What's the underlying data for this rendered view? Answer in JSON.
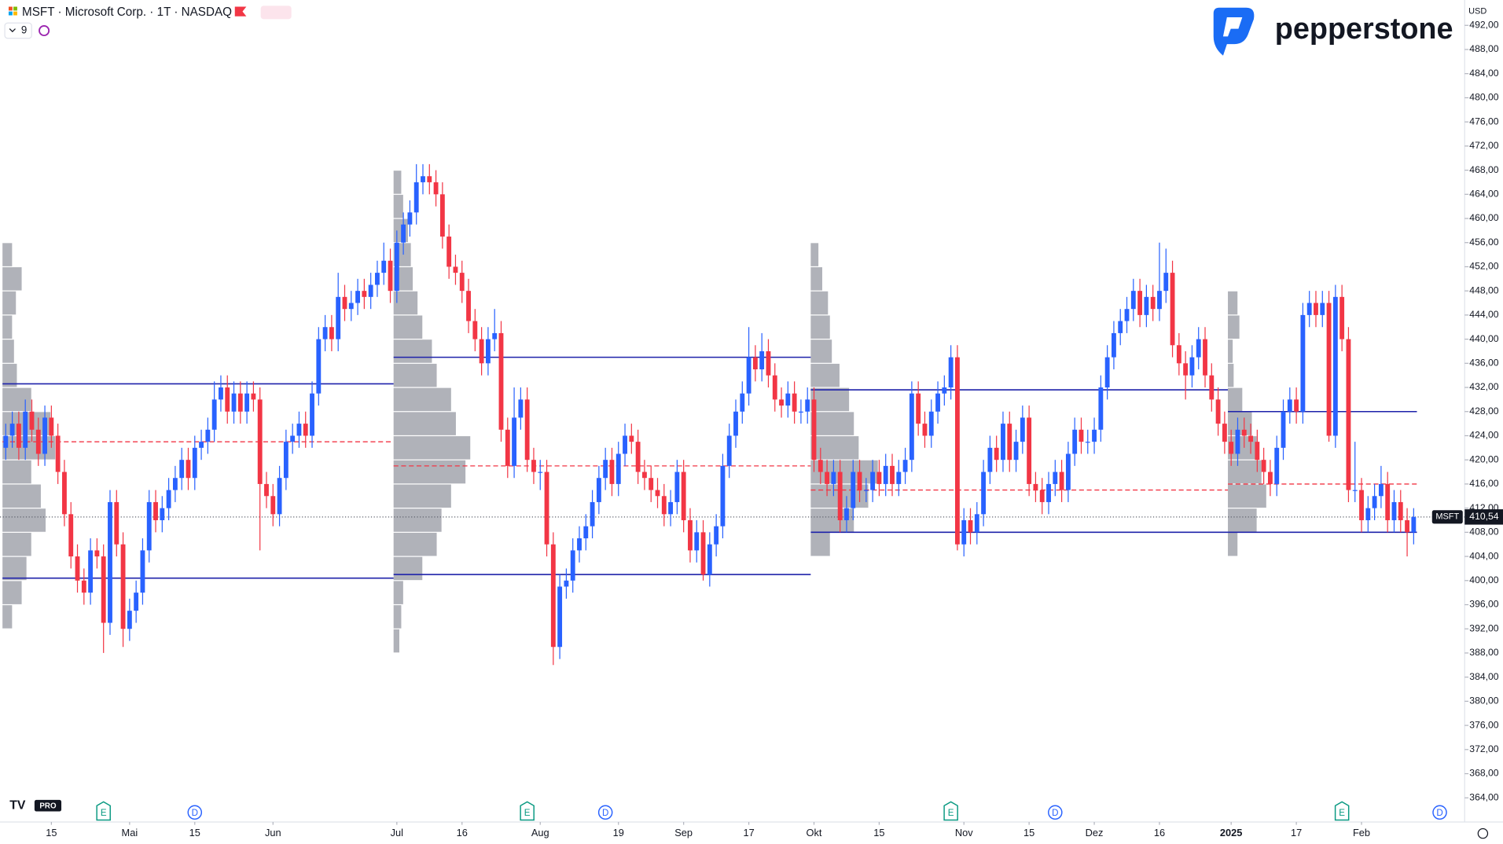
{
  "chart_data": {
    "type": "candlestick",
    "title": "MSFT · Microsoft Corp. · 1T · NASDAQ",
    "interval_badge": "9",
    "currency": "USD",
    "brand": "pepperstone",
    "tv_badge": "PRO",
    "symbol_tag": "MSFT",
    "last_price": {
      "value": 410.54,
      "label": "410,54"
    },
    "up_color": "#2962ff",
    "down_color": "#f23645",
    "ylim": [
      360,
      496.2
    ],
    "yticks": [
      {
        "value": 364,
        "label": "364,00"
      },
      {
        "value": 368,
        "label": "368,00"
      },
      {
        "value": 372,
        "label": "372,00"
      },
      {
        "value": 376,
        "label": "376,00"
      },
      {
        "value": 380,
        "label": "380,00"
      },
      {
        "value": 384,
        "label": "384,00"
      },
      {
        "value": 388,
        "label": "388,00"
      },
      {
        "value": 392,
        "label": "392,00"
      },
      {
        "value": 396,
        "label": "396,00"
      },
      {
        "value": 400,
        "label": "400,00"
      },
      {
        "value": 404,
        "label": "404,00"
      },
      {
        "value": 408,
        "label": "408,00"
      },
      {
        "value": 412,
        "label": "412,00"
      },
      {
        "value": 416,
        "label": "416,00"
      },
      {
        "value": 420,
        "label": "420,00"
      },
      {
        "value": 424,
        "label": "424,00"
      },
      {
        "value": 428,
        "label": "428,00"
      },
      {
        "value": 432,
        "label": "432,00"
      },
      {
        "value": 436,
        "label": "436,00"
      },
      {
        "value": 440,
        "label": "440,00"
      },
      {
        "value": 444,
        "label": "444,00"
      },
      {
        "value": 448,
        "label": "448,00"
      },
      {
        "value": 452,
        "label": "452,00"
      },
      {
        "value": 456,
        "label": "456,00"
      },
      {
        "value": 460,
        "label": "460,00"
      },
      {
        "value": 464,
        "label": "464,00"
      },
      {
        "value": 468,
        "label": "468,00"
      },
      {
        "value": 472,
        "label": "472,00"
      },
      {
        "value": 476,
        "label": "476,00"
      },
      {
        "value": 480,
        "label": "480,00"
      },
      {
        "value": 484,
        "label": "484,00"
      },
      {
        "value": 488,
        "label": "488,00"
      },
      {
        "value": 492,
        "label": "492,00"
      }
    ],
    "xticks": [
      {
        "value": 7,
        "label": "15"
      },
      {
        "value": 19,
        "label": "Mai"
      },
      {
        "value": 29,
        "label": "15"
      },
      {
        "value": 41,
        "label": "Jun"
      },
      {
        "value": 60,
        "label": "Jul"
      },
      {
        "value": 70,
        "label": "16"
      },
      {
        "value": 82,
        "label": "Aug"
      },
      {
        "value": 94,
        "label": "19"
      },
      {
        "value": 104,
        "label": "Sep"
      },
      {
        "value": 114,
        "label": "17"
      },
      {
        "value": 124,
        "label": "Okt"
      },
      {
        "value": 134,
        "label": "15"
      },
      {
        "value": 147,
        "label": "Nov"
      },
      {
        "value": 157,
        "label": "15"
      },
      {
        "value": 167,
        "label": "Dez"
      },
      {
        "value": 177,
        "label": "16"
      },
      {
        "value": 188,
        "label": "2025"
      },
      {
        "value": 198,
        "label": "17"
      },
      {
        "value": 208,
        "label": "Feb"
      }
    ],
    "open": [
      422,
      424,
      426,
      422,
      428,
      425,
      421,
      427,
      424,
      418,
      411,
      404,
      400,
      398,
      405,
      404,
      393,
      413,
      406,
      392,
      395,
      398,
      405,
      413,
      410,
      412,
      415,
      417,
      420,
      417,
      422,
      423,
      425,
      430,
      432,
      428,
      431,
      428,
      431,
      430,
      416,
      414,
      411,
      417,
      423,
      424,
      426,
      424,
      431,
      440,
      442,
      440,
      447,
      445,
      446,
      448,
      447,
      449,
      451,
      453,
      448,
      456,
      459,
      461,
      466,
      467,
      466,
      464,
      457,
      452,
      451,
      448,
      443,
      440,
      436,
      440,
      441,
      425,
      419,
      427,
      430,
      420,
      418,
      418,
      406,
      389,
      399,
      400,
      405,
      407,
      409,
      413,
      417,
      420,
      416,
      421,
      424,
      423,
      418,
      417,
      415,
      414,
      411,
      413,
      418,
      410,
      405,
      408,
      401,
      406,
      409,
      419,
      424,
      428,
      431,
      437,
      435,
      438,
      434,
      430,
      429,
      431,
      428,
      428,
      430,
      420,
      418,
      416,
      418,
      410,
      412,
      418,
      415,
      415,
      418,
      416,
      419,
      416,
      418,
      420,
      431,
      426,
      424,
      428,
      431,
      432,
      437,
      406,
      410,
      408,
      411,
      418,
      422,
      420,
      426,
      420,
      423,
      427,
      416,
      415,
      413,
      416,
      418,
      415,
      421,
      425,
      423,
      423,
      425,
      432,
      437,
      441,
      443,
      445,
      448,
      444,
      447,
      445,
      448,
      451,
      439,
      436,
      434,
      437,
      440,
      434,
      430,
      426,
      423,
      421,
      425,
      424,
      423,
      420,
      418,
      416,
      422,
      428,
      430,
      428,
      444,
      446,
      444,
      446,
      424,
      447,
      440,
      415,
      415,
      410,
      412,
      414,
      416,
      410,
      413,
      410,
      408
    ],
    "high": [
      426,
      428,
      428,
      430,
      430,
      427,
      429,
      429,
      426,
      420,
      413,
      406,
      402,
      407,
      407,
      406,
      415,
      415,
      408,
      397,
      400,
      407,
      415,
      415,
      414,
      417,
      419,
      422,
      422,
      424,
      425,
      427,
      433,
      434,
      434,
      433,
      433,
      433,
      433,
      432,
      418,
      416,
      419,
      425,
      426,
      428,
      428,
      433,
      442,
      444,
      444,
      451,
      449,
      448,
      450,
      450,
      451,
      453,
      456,
      455,
      458,
      461,
      463,
      469,
      469,
      469,
      468,
      466,
      459,
      454,
      453,
      450,
      445,
      442,
      442,
      445,
      443,
      427,
      432,
      432,
      432,
      422,
      420,
      420,
      408,
      401,
      402,
      407,
      409,
      411,
      415,
      419,
      422,
      422,
      423,
      426,
      426,
      425,
      420,
      419,
      417,
      416,
      415,
      420,
      420,
      412,
      410,
      410,
      408,
      411,
      421,
      426,
      430,
      433,
      442,
      439,
      441,
      440,
      436,
      432,
      433,
      433,
      430,
      432,
      432,
      422,
      420,
      420,
      420,
      414,
      420,
      420,
      417,
      420,
      420,
      421,
      421,
      420,
      422,
      433,
      433,
      428,
      430,
      433,
      434,
      439,
      439,
      412,
      412,
      413,
      420,
      424,
      424,
      428,
      428,
      425,
      429,
      429,
      418,
      417,
      418,
      420,
      420,
      423,
      427,
      427,
      425,
      427,
      434,
      439,
      443,
      445,
      447,
      450,
      450,
      449,
      449,
      456,
      455,
      453,
      441,
      438,
      439,
      442,
      442,
      436,
      432,
      428,
      425,
      427,
      427,
      426,
      425,
      422,
      420,
      424,
      430,
      432,
      432,
      446,
      448,
      448,
      448,
      448,
      449,
      449,
      442,
      423,
      417,
      414,
      416,
      419,
      418,
      415,
      415,
      412,
      412
    ],
    "low": [
      420,
      422,
      420,
      420,
      423,
      419,
      419,
      422,
      416,
      409,
      402,
      398,
      396,
      396,
      402,
      388,
      391,
      404,
      389,
      390,
      393,
      396,
      403,
      408,
      408,
      410,
      413,
      415,
      415,
      415,
      420,
      421,
      423,
      428,
      426,
      426,
      426,
      426,
      428,
      405,
      412,
      409,
      409,
      415,
      421,
      422,
      422,
      422,
      429,
      438,
      438,
      438,
      443,
      443,
      444,
      445,
      445,
      447,
      449,
      446,
      446,
      454,
      457,
      459,
      464,
      464,
      462,
      455,
      450,
      449,
      446,
      441,
      438,
      434,
      434,
      438,
      423,
      417,
      417,
      425,
      418,
      416,
      415,
      404,
      386,
      387,
      397,
      398,
      403,
      405,
      407,
      411,
      415,
      414,
      414,
      419,
      421,
      416,
      415,
      413,
      412,
      409,
      409,
      411,
      408,
      403,
      403,
      400,
      399,
      404,
      407,
      417,
      422,
      426,
      429,
      433,
      433,
      432,
      428,
      427,
      427,
      426,
      426,
      426,
      418,
      416,
      414,
      414,
      408,
      408,
      410,
      413,
      413,
      413,
      414,
      414,
      414,
      414,
      416,
      418,
      424,
      422,
      422,
      426,
      429,
      430,
      405,
      404,
      406,
      406,
      409,
      416,
      418,
      418,
      418,
      418,
      421,
      414,
      413,
      411,
      411,
      414,
      413,
      413,
      419,
      421,
      421,
      421,
      423,
      430,
      435,
      439,
      441,
      443,
      442,
      442,
      443,
      443,
      446,
      437,
      434,
      430,
      432,
      435,
      432,
      428,
      424,
      421,
      419,
      419,
      422,
      421,
      418,
      416,
      414,
      414,
      420,
      426,
      426,
      426,
      442,
      442,
      442,
      423,
      422,
      438,
      413,
      413,
      408,
      408,
      410,
      412,
      408,
      408,
      408,
      404,
      406
    ],
    "close": [
      424,
      426,
      422,
      428,
      425,
      421,
      427,
      424,
      418,
      411,
      404,
      400,
      398,
      405,
      404,
      393,
      413,
      406,
      392,
      395,
      398,
      405,
      413,
      410,
      412,
      415,
      417,
      420,
      417,
      422,
      423,
      425,
      430,
      432,
      428,
      431,
      428,
      431,
      430,
      416,
      414,
      411,
      417,
      423,
      424,
      426,
      424,
      431,
      440,
      442,
      440,
      447,
      445,
      446,
      448,
      447,
      449,
      451,
      453,
      448,
      456,
      459,
      461,
      466,
      467,
      466,
      464,
      457,
      452,
      451,
      448,
      443,
      440,
      436,
      440,
      441,
      425,
      419,
      427,
      430,
      420,
      418,
      418,
      406,
      389,
      399,
      400,
      405,
      407,
      409,
      413,
      417,
      420,
      416,
      421,
      424,
      423,
      418,
      417,
      415,
      414,
      411,
      413,
      418,
      410,
      405,
      408,
      401,
      406,
      409,
      419,
      424,
      428,
      431,
      437,
      435,
      438,
      434,
      430,
      429,
      431,
      428,
      428,
      430,
      420,
      418,
      416,
      418,
      410,
      412,
      418,
      415,
      415,
      418,
      416,
      419,
      416,
      418,
      420,
      431,
      426,
      424,
      428,
      431,
      432,
      437,
      406,
      410,
      408,
      411,
      418,
      422,
      420,
      426,
      420,
      423,
      427,
      416,
      415,
      413,
      416,
      418,
      415,
      421,
      425,
      423,
      423,
      425,
      432,
      437,
      441,
      443,
      445,
      448,
      444,
      447,
      445,
      448,
      451,
      439,
      436,
      434,
      437,
      440,
      434,
      430,
      426,
      423,
      421,
      425,
      424,
      423,
      420,
      418,
      416,
      422,
      428,
      430,
      428,
      444,
      446,
      444,
      446,
      424,
      447,
      440,
      415,
      415,
      410,
      412,
      414,
      416,
      410,
      413,
      410,
      408,
      410.54
    ],
    "levels": [
      {
        "start": 0,
        "end": 60,
        "vah": 432.6,
        "val": 400.4,
        "poc": 423
      },
      {
        "start": 60,
        "end": 124,
        "vah": 437,
        "val": 401,
        "poc": 419
      },
      {
        "start": 124,
        "end": 188,
        "vah": 431.6,
        "val": 408,
        "poc": 415
      },
      {
        "start": 188,
        "end": 217,
        "vah": 428,
        "val": 408,
        "poc": 416
      }
    ],
    "volume_profiles": [
      {
        "start": 0,
        "bins": [
          392,
          396,
          400,
          404,
          408,
          412,
          416,
          420,
          424,
          428,
          432,
          436,
          440,
          444,
          448,
          452,
          456
        ],
        "volumes": [
          10,
          20,
          25,
          30,
          45,
          40,
          30,
          55,
          50,
          30,
          15,
          12,
          10,
          14,
          20,
          10
        ]
      },
      {
        "start": 60,
        "bins": [
          388,
          392,
          396,
          400,
          404,
          408,
          412,
          416,
          420,
          424,
          428,
          432,
          436,
          440,
          444,
          448,
          452,
          456,
          460,
          464,
          468
        ],
        "volumes": [
          6,
          8,
          10,
          30,
          45,
          50,
          60,
          75,
          80,
          65,
          60,
          45,
          40,
          30,
          25,
          20,
          18,
          15,
          10,
          8
        ]
      },
      {
        "start": 124,
        "bins": [
          404,
          408,
          412,
          416,
          420,
          424,
          428,
          432,
          436,
          440,
          444,
          448,
          452,
          456
        ],
        "volumes": [
          20,
          45,
          60,
          70,
          50,
          45,
          40,
          30,
          22,
          20,
          18,
          12,
          8
        ]
      },
      {
        "start": 188,
        "bins": [
          404,
          408,
          412,
          416,
          420,
          424,
          428,
          432,
          436,
          440,
          444,
          448
        ],
        "volumes": [
          10,
          30,
          40,
          35,
          30,
          25,
          15,
          6,
          5,
          12,
          10
        ]
      }
    ],
    "events": [
      {
        "index": 15,
        "label": "E"
      },
      {
        "index": 29,
        "label": "D"
      },
      {
        "index": 80,
        "label": "E"
      },
      {
        "index": 92,
        "label": "D"
      },
      {
        "index": 145,
        "label": "E"
      },
      {
        "index": 161,
        "label": "D"
      },
      {
        "index": 205,
        "label": "E"
      },
      {
        "index": 220,
        "label": "D"
      }
    ]
  }
}
